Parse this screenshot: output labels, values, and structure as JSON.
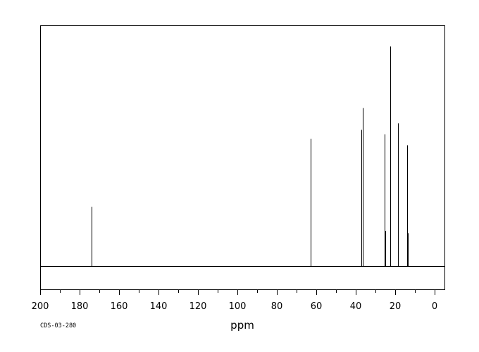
{
  "chart_data": {
    "type": "line",
    "xlabel": "ppm",
    "ylabel": "",
    "xlim": [
      200,
      -5
    ],
    "x_reversed": true,
    "ylim": [
      0,
      1.0
    ],
    "x_ticks": [
      200,
      180,
      160,
      140,
      120,
      100,
      80,
      60,
      40,
      20,
      0
    ],
    "x_tick_labels": [
      "200",
      "180",
      "160",
      "140",
      "120",
      "100",
      "80",
      "60",
      "40",
      "20",
      "0"
    ],
    "grid": false,
    "legend": "none",
    "series": [
      {
        "peaks": [
          {
            "x": 173.8,
            "y": 0.27
          },
          {
            "x": 62.8,
            "y": 0.58
          },
          {
            "x": 37.2,
            "y": 0.62
          },
          {
            "x": 36.4,
            "y": 0.72
          },
          {
            "x": 25.2,
            "y": 0.6
          },
          {
            "x": 24.9,
            "y": 0.16
          },
          {
            "x": 22.6,
            "y": 1.0
          },
          {
            "x": 18.5,
            "y": 0.65
          },
          {
            "x": 13.8,
            "y": 0.55
          },
          {
            "x": 13.5,
            "y": 0.15
          }
        ]
      }
    ]
  },
  "footer": {
    "code": "CDS-03-280"
  },
  "colors": {
    "line": "#000000",
    "background": "#ffffff"
  }
}
